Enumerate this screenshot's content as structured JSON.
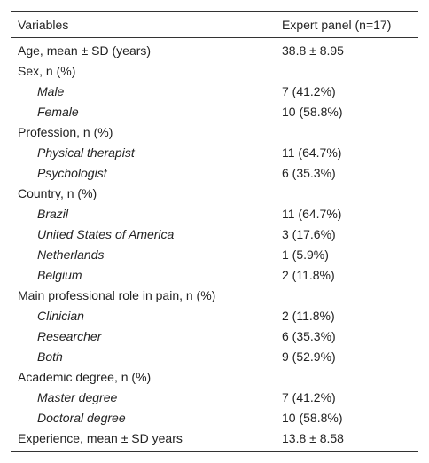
{
  "table": {
    "header": [
      "Variables",
      "Expert panel (n=17)"
    ],
    "rows": [
      {
        "label": "Age, mean ± SD (years)",
        "value": "38.8 ± 8.95"
      },
      {
        "label": "Sex, n (%)",
        "items": [
          [
            "Male",
            "7 (41.2%)"
          ],
          [
            "Female",
            "10 (58.8%)"
          ]
        ]
      },
      {
        "label": "Profession, n (%)",
        "items": [
          [
            "Physical therapist",
            "11 (64.7%)"
          ],
          [
            "Psychologist",
            "6 (35.3%)"
          ]
        ]
      },
      {
        "label": "Country, n (%)",
        "items": [
          [
            "Brazil",
            "11 (64.7%)"
          ],
          [
            "United States of America",
            "3 (17.6%)"
          ],
          [
            "Netherlands",
            "1 (5.9%)"
          ],
          [
            "Belgium",
            "2 (11.8%)"
          ]
        ]
      },
      {
        "label": "Main professional role in pain, n (%)",
        "items": [
          [
            "Clinician",
            "2 (11.8%)"
          ],
          [
            "Researcher",
            "6 (35.3%)"
          ],
          [
            "Both",
            "9 (52.9%)"
          ]
        ]
      },
      {
        "label": "Academic degree, n (%)",
        "items": [
          [
            "Master degree",
            "7 (41.2%)"
          ],
          [
            "Doctoral degree",
            "10 (58.8%)"
          ]
        ]
      },
      {
        "label": "Experience, mean ± SD years",
        "value": "13.8 ± 8.58"
      }
    ]
  }
}
